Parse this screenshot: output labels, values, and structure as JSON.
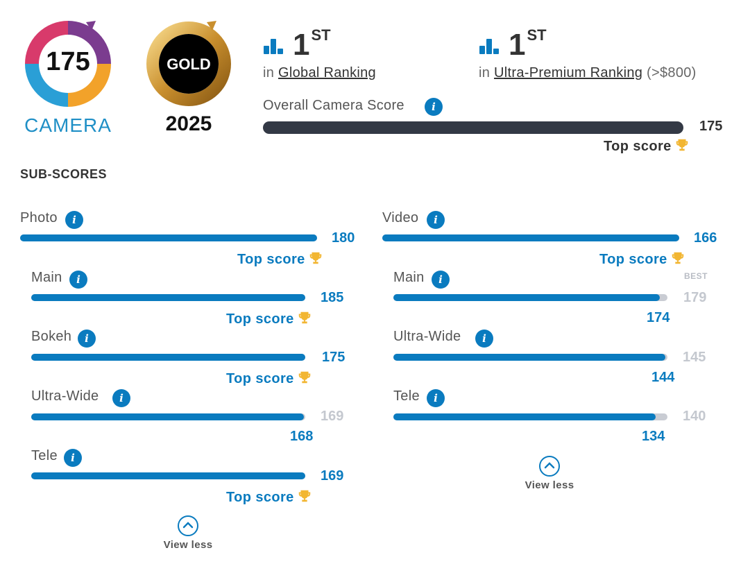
{
  "badges": {
    "camera_score": "175",
    "camera_label": "CAMERA",
    "gold_label": "GOLD",
    "gold_year": "2025"
  },
  "rankings": [
    {
      "position": "1",
      "suffix": "ST",
      "prefix": "in",
      "name": "Global Ranking",
      "extra": ""
    },
    {
      "position": "1",
      "suffix": "ST",
      "prefix": "in",
      "name": "Ultra-Premium Ranking",
      "extra": "(>$800)"
    }
  ],
  "overall": {
    "label": "Overall Camera Score",
    "value": "175",
    "fraction": 1.0,
    "top_score": "Top score"
  },
  "subscores_title": "SUB-SCORES",
  "best_label": "BEST",
  "view_less": "View less",
  "photo": {
    "label": "Photo",
    "value": "180",
    "fraction": 1.0,
    "top_score": "Top score",
    "items": [
      {
        "label": "Main",
        "value": "185",
        "best": "",
        "fraction": 1.0,
        "top_score": "Top score"
      },
      {
        "label": "Bokeh",
        "value": "175",
        "best": "",
        "fraction": 1.0,
        "top_score": "Top score"
      },
      {
        "label": "Ultra-Wide",
        "value": "168",
        "best": "169",
        "fraction": 0.994,
        "top_score": ""
      },
      {
        "label": "Tele",
        "value": "169",
        "best": "",
        "fraction": 1.0,
        "top_score": "Top score"
      }
    ]
  },
  "video": {
    "label": "Video",
    "value": "166",
    "fraction": 1.0,
    "top_score": "Top score",
    "items": [
      {
        "label": "Main",
        "value": "174",
        "best": "179",
        "fraction": 0.972
      },
      {
        "label": "Ultra-Wide",
        "value": "144",
        "best": "145",
        "fraction": 0.993
      },
      {
        "label": "Tele",
        "value": "134",
        "best": "140",
        "fraction": 0.957
      }
    ]
  },
  "colors": {
    "accent": "#0a7bbf",
    "dark_bar": "#333945",
    "track": "#c9ccd3",
    "trophy": "#f2b632"
  }
}
